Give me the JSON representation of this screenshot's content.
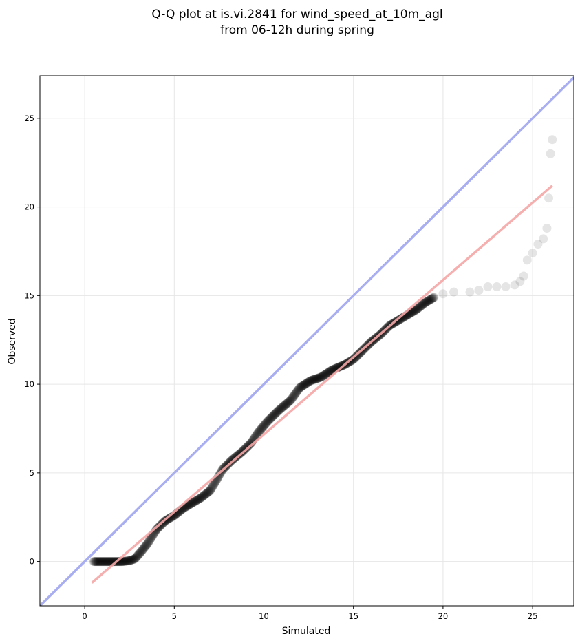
{
  "chart_data": {
    "type": "scatter",
    "title": [
      "Q-Q plot at is.vi.2841 for wind_speed_at_10m_agl",
      "from 06-12h during spring"
    ],
    "xlabel": "Simulated",
    "ylabel": "Observed",
    "xlim": [
      -2.5,
      27.3
    ],
    "ylim": [
      -2.5,
      27.4
    ],
    "xticks": [
      0,
      5,
      10,
      15,
      20,
      25
    ],
    "yticks": [
      0,
      5,
      10,
      15,
      20,
      25
    ],
    "grid": true,
    "legend": "none",
    "colors": {
      "points": "#000000",
      "identity_line": "#a8aef0",
      "fit_line": "#f4a6a6"
    },
    "identity_line": {
      "x": [
        -2.5,
        27.3
      ],
      "y": [
        -2.5,
        27.3
      ]
    },
    "fit_line": {
      "x": [
        0.4,
        26.1
      ],
      "y": [
        -1.2,
        21.2
      ]
    },
    "points_quantiles": {
      "x": [
        0.5,
        0.9,
        1.3,
        1.7,
        2.1,
        2.5,
        2.8,
        3.1,
        3.5,
        4.0,
        4.5,
        5.0,
        5.5,
        6.0,
        6.5,
        7.0,
        7.3,
        7.7,
        8.2,
        8.8,
        9.3,
        9.7,
        10.2,
        10.8,
        11.5,
        12.0,
        12.6,
        13.2,
        13.8,
        14.5,
        15.0,
        15.5,
        16.0,
        16.5,
        17.0,
        17.5,
        18.0,
        18.5,
        19.0,
        19.5,
        20.0,
        20.6,
        21.5,
        22.0,
        22.5,
        23.0,
        23.5,
        24.0,
        24.3,
        24.5,
        24.7,
        25.0,
        25.3,
        25.6,
        25.8,
        25.9,
        26.0,
        26.1
      ],
      "y": [
        0.0,
        0.0,
        0.0,
        0.0,
        0.0,
        0.05,
        0.15,
        0.5,
        1.0,
        1.8,
        2.3,
        2.6,
        3.0,
        3.3,
        3.6,
        4.0,
        4.5,
        5.2,
        5.7,
        6.2,
        6.7,
        7.3,
        7.9,
        8.5,
        9.1,
        9.8,
        10.2,
        10.4,
        10.8,
        11.1,
        11.4,
        11.9,
        12.4,
        12.8,
        13.3,
        13.6,
        13.9,
        14.2,
        14.6,
        14.9,
        15.1,
        15.2,
        15.2,
        15.3,
        15.5,
        15.5,
        15.5,
        15.6,
        15.8,
        16.1,
        17.0,
        17.4,
        17.9,
        18.2,
        18.8,
        20.5,
        23.0,
        23.8
      ]
    }
  }
}
